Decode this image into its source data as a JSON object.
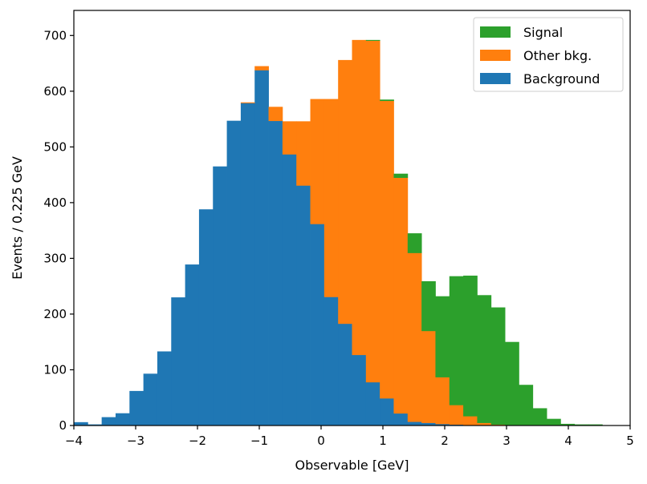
{
  "chart_data": {
    "type": "bar",
    "stacked": true,
    "histogram": true,
    "title": "",
    "xlabel": "Observable [GeV]",
    "ylabel": "Events / 0.225 GeV",
    "xlim": [
      -4,
      5
    ],
    "ylim": [
      0,
      745
    ],
    "x_ticks": [
      -4,
      -3,
      -2,
      -1,
      0,
      1,
      2,
      3,
      4,
      5
    ],
    "x_tick_labels": [
      "−4",
      "−3",
      "−2",
      "−1",
      "0",
      "1",
      "2",
      "3",
      "4",
      "5"
    ],
    "y_ticks": [
      0,
      100,
      200,
      300,
      400,
      500,
      600,
      700
    ],
    "y_tick_labels": [
      "0",
      "100",
      "200",
      "300",
      "400",
      "500",
      "600",
      "700"
    ],
    "grid": false,
    "legend_position": "top-right",
    "bin_start": -4.0,
    "bin_width": 0.225,
    "series": [
      {
        "name": "Background",
        "color": "#1f77b4",
        "values": [
          6,
          2,
          15,
          22,
          62,
          93,
          133,
          230,
          289,
          388,
          465,
          547,
          579,
          638,
          547,
          487,
          431,
          362,
          231,
          183,
          127,
          78,
          49,
          22,
          7,
          5,
          3,
          2,
          1,
          1,
          1,
          0,
          0,
          0,
          0,
          0,
          0,
          0,
          0,
          0
        ]
      },
      {
        "name": "Other bkg.",
        "color": "#ff7f0e",
        "values": [
          0,
          0,
          0,
          0,
          0,
          0,
          0,
          0,
          0,
          0,
          0,
          0,
          1,
          7,
          25,
          59,
          115,
          224,
          355,
          473,
          565,
          613,
          534,
          423,
          303,
          165,
          84,
          35,
          16,
          4,
          1,
          0,
          0,
          0,
          0,
          0,
          0,
          0,
          0,
          0
        ]
      },
      {
        "name": "Signal",
        "color": "#2ca02c",
        "values": [
          0,
          0,
          0,
          0,
          0,
          0,
          0,
          0,
          0,
          0,
          0,
          0,
          0,
          0,
          0,
          0,
          0,
          0,
          0,
          0,
          0,
          1,
          2,
          7,
          35,
          89,
          145,
          231,
          252,
          229,
          210,
          150,
          73,
          31,
          12,
          3,
          2,
          2,
          0,
          0
        ]
      }
    ]
  }
}
